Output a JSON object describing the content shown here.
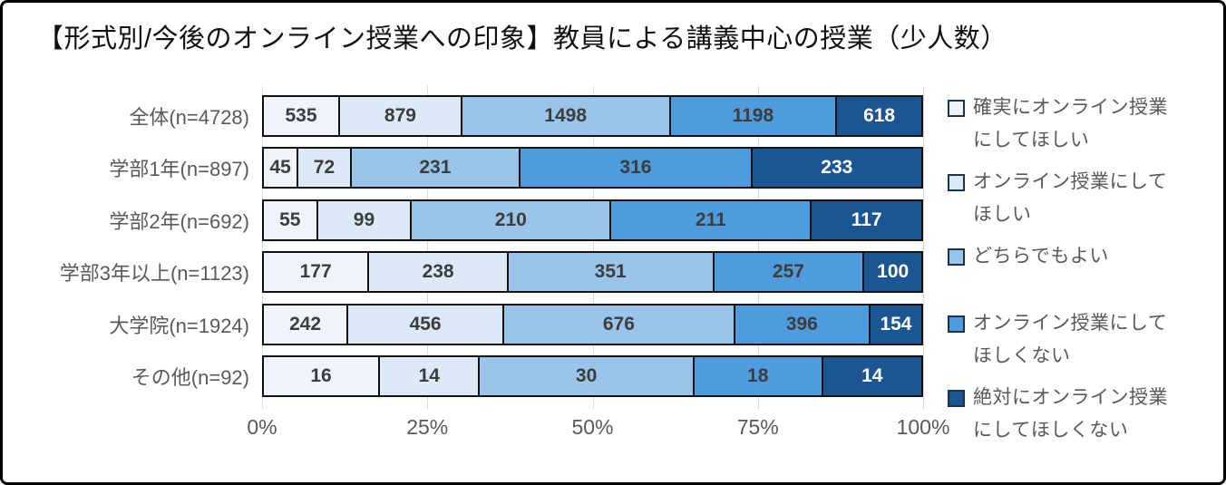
{
  "title": "【形式別/今後のオンライン授業への印象】教員による講義中心の授業（少人数）",
  "colors": {
    "segment_border": "#111111",
    "gridline": "#d9d9d9",
    "axis_text": "#595959",
    "category_text": "#595959",
    "value_text_dark": "#3d3d3d",
    "value_text_light": "#ffffff"
  },
  "chart_data": {
    "type": "bar",
    "variant": "horizontal-100%-stacked",
    "title": "【形式別/今後のオンライン授業への印象】教員による講義中心の授業（少人数）",
    "categories": [
      "全体(n=4728)",
      "学部1年(n=897)",
      "学部2年(n=692)",
      "学部3年以上(n=1123)",
      "大学院(n=1924)",
      "その他(n=92)"
    ],
    "series": [
      {
        "name": "確実にオンライン授業にしてほしい",
        "color": "#EFF4FB",
        "value_color": "#3d3d3d",
        "values": [
          535,
          45,
          55,
          177,
          242,
          16
        ]
      },
      {
        "name": "オンライン授業にしてほしい",
        "color": "#DCE9F6",
        "value_color": "#3d3d3d",
        "values": [
          879,
          72,
          99,
          238,
          456,
          14
        ]
      },
      {
        "name": "どちらでもよい",
        "color": "#9AC4EA",
        "value_color": "#3d3d3d",
        "values": [
          1498,
          231,
          210,
          351,
          676,
          30
        ]
      },
      {
        "name": "オンライン授業にしてほしくない",
        "color": "#4E9BDE",
        "value_color": "#3d3d3d",
        "values": [
          1198,
          316,
          211,
          257,
          396,
          18
        ]
      },
      {
        "name": "絶対にオンライン授業にしてほしくない",
        "color": "#1B5593",
        "value_color": "#ffffff",
        "values": [
          618,
          233,
          117,
          100,
          154,
          14
        ]
      }
    ],
    "x_tick_labels": [
      "0%",
      "25%",
      "50%",
      "75%",
      "100%"
    ],
    "x_tick_positions_pct": [
      0,
      25,
      50,
      75,
      100
    ],
    "xlim": [
      0,
      100
    ],
    "gridlines": true,
    "legend_position": "right",
    "legend_gap_after_index": 2
  }
}
